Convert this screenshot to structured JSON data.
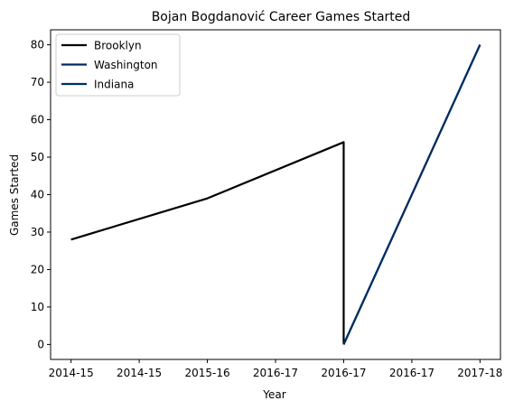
{
  "chart_data": {
    "type": "line",
    "title": "Bojan Bogdanović Career Games Started",
    "xlabel": "Year",
    "ylabel": "Games Started",
    "x_tick_labels": [
      "2014-15",
      "2014-15",
      "2015-16",
      "2016-17",
      "2016-17",
      "2016-17",
      "2017-18"
    ],
    "x": [
      0,
      1,
      2,
      3,
      4,
      5,
      6
    ],
    "ylim": [
      -4,
      84
    ],
    "y_ticks": [
      0,
      10,
      20,
      30,
      40,
      50,
      60,
      70,
      80
    ],
    "grid": false,
    "legend_position": "top-left",
    "series": [
      {
        "name": "Brooklyn",
        "color": "#000000",
        "x": [
          0,
          2,
          4,
          4
        ],
        "y": [
          28,
          39,
          54,
          0
        ]
      },
      {
        "name": "Washington",
        "color": "#002b5c",
        "x": [
          4,
          6
        ],
        "y": [
          0,
          80
        ]
      },
      {
        "name": "Indiana",
        "color": "#002d62",
        "x": [
          4,
          6
        ],
        "y": [
          0,
          80
        ]
      }
    ]
  }
}
